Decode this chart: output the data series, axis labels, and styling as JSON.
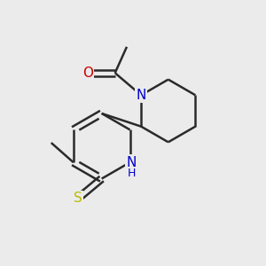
{
  "background_color": "#ebebeb",
  "bond_color": "#2a2a2a",
  "bond_width": 1.8,
  "atom_colors": {
    "N": "#0000cc",
    "O": "#cc0000",
    "S": "#bbbb00",
    "C": "#2a2a2a"
  },
  "font_size_N": 11,
  "font_size_O": 11,
  "font_size_S": 11,
  "font_size_NH": 10,
  "figsize": [
    3.0,
    3.0
  ],
  "dpi": 100
}
